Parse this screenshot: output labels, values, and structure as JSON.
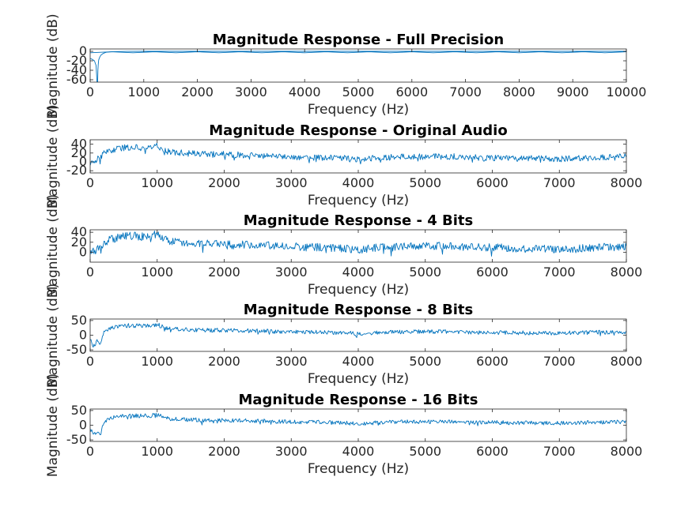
{
  "figure": {
    "background": "#ffffff",
    "line_color": "#0072bd",
    "axis_color": "#262626"
  },
  "chart_data": [
    {
      "type": "line",
      "title": "Magnitude Response - Full Precision",
      "xlabel": "Frequency (Hz)",
      "ylabel": "Magnitude (dB)",
      "xlim": [
        0,
        10000
      ],
      "ylim": [
        -65,
        5
      ],
      "xticks": [
        0,
        1000,
        2000,
        3000,
        4000,
        5000,
        6000,
        7000,
        8000,
        9000,
        10000
      ],
      "yticks": [
        -60,
        -40,
        -20,
        0
      ],
      "grid": false,
      "series": [
        {
          "x": [
            0,
            40,
            80,
            110,
            125,
            135,
            140,
            145,
            150,
            160,
            180,
            200,
            250,
            300,
            400,
            500,
            700,
            1000,
            2000,
            3000,
            4000,
            5000,
            6000,
            7000,
            8000,
            9000,
            10000
          ],
          "values": [
            -15,
            -17,
            -20,
            -30,
            -60,
            -80,
            -64,
            -40,
            -28,
            -18,
            -12,
            -8,
            -4,
            -2,
            -1,
            -0.5,
            -0.2,
            0,
            0,
            0,
            0,
            0,
            0,
            0,
            0,
            0,
            0
          ]
        },
        {
          "x": [
            0,
            200,
            400,
            600,
            800,
            1000,
            1200,
            1400,
            1600,
            1800,
            2000,
            2200,
            2400,
            2600,
            2800,
            3000,
            3200,
            3400,
            3600,
            3800,
            4000,
            4200,
            4400,
            4600,
            4800,
            5000,
            5200,
            5400,
            5600,
            5800,
            6000,
            6200,
            6400,
            6600,
            6800,
            7000,
            7200,
            7400,
            7600,
            7800,
            8000,
            8200,
            8400,
            8600,
            8800,
            9000,
            9200,
            9400,
            9600,
            9800,
            10000
          ],
          "values": [
            -3,
            -2,
            -1,
            -2,
            -3,
            -2,
            -1,
            -2,
            -3,
            -2,
            -1,
            -2,
            -3,
            -2,
            -1,
            -2,
            -3,
            -2,
            -1,
            -2,
            -3,
            -2,
            -1,
            -2,
            -3,
            -2,
            -1,
            -2,
            -3,
            -2,
            -1,
            -2,
            -3,
            -2,
            -1,
            -2,
            -3,
            -2,
            -1,
            -2,
            -3,
            -2,
            -1,
            -2,
            -3,
            -2,
            -1,
            -2,
            -3,
            -2,
            -1
          ]
        }
      ]
    },
    {
      "type": "line",
      "title": "Magnitude Response - Original Audio",
      "xlabel": "Frequency (Hz)",
      "ylabel": "Magnitude (dB)",
      "xlim": [
        0,
        8000
      ],
      "ylim": [
        -25,
        50
      ],
      "xticks": [
        0,
        1000,
        2000,
        3000,
        4000,
        5000,
        6000,
        7000,
        8000
      ],
      "yticks": [
        -20,
        0,
        20,
        40
      ],
      "grid": false,
      "series": [
        {
          "x": [
            0,
            100,
            200,
            300,
            400,
            500,
            600,
            700,
            800,
            900,
            1000,
            1100,
            1200,
            1400,
            1600,
            1800,
            2000,
            2200,
            2400,
            2600,
            2800,
            3000,
            3200,
            3400,
            3600,
            3800,
            4000,
            4200,
            4400,
            4600,
            4800,
            5000,
            5200,
            5400,
            5600,
            5800,
            6000,
            6200,
            6400,
            6600,
            6800,
            7000,
            7200,
            7400,
            7600,
            7800,
            8000
          ],
          "values": [
            -5,
            5,
            18,
            25,
            30,
            32,
            33,
            33,
            32,
            32,
            38,
            26,
            22,
            20,
            18,
            17,
            17,
            16,
            15,
            14,
            12,
            12,
            10,
            10,
            9,
            8,
            5,
            8,
            10,
            11,
            12,
            12,
            12,
            12,
            11,
            10,
            9,
            9,
            8,
            8,
            7,
            7,
            8,
            9,
            10,
            10,
            12
          ],
          "noise": 7
        }
      ]
    },
    {
      "type": "line",
      "title": "Magnitude Response - 4 Bits",
      "xlabel": "Frequency (Hz)",
      "ylabel": "Magnitude (dB)",
      "xlim": [
        0,
        8000
      ],
      "ylim": [
        -20,
        45
      ],
      "xticks": [
        0,
        1000,
        2000,
        3000,
        4000,
        5000,
        6000,
        7000,
        8000
      ],
      "yticks": [
        0,
        20,
        40
      ],
      "grid": false,
      "series": [
        {
          "x": [
            0,
            100,
            200,
            300,
            400,
            500,
            600,
            700,
            800,
            900,
            1000,
            1100,
            1200,
            1400,
            1600,
            1800,
            2000,
            2200,
            2400,
            2600,
            2800,
            3000,
            3200,
            3400,
            3600,
            3800,
            4000,
            4200,
            4400,
            4600,
            4800,
            5000,
            5200,
            5400,
            5600,
            5800,
            6000,
            6200,
            6400,
            6600,
            6800,
            7000,
            7200,
            7400,
            7600,
            7800,
            8000
          ],
          "values": [
            -2,
            6,
            18,
            26,
            30,
            32,
            33,
            32,
            32,
            32,
            38,
            26,
            22,
            20,
            18,
            17,
            17,
            16,
            15,
            14,
            12,
            12,
            10,
            10,
            9,
            8,
            3,
            8,
            10,
            11,
            12,
            12,
            12,
            12,
            11,
            10,
            9,
            9,
            8,
            8,
            7,
            7,
            6,
            8,
            10,
            10,
            12
          ],
          "noise": 8
        }
      ]
    },
    {
      "type": "line",
      "title": "Magnitude Response - 8 Bits",
      "xlabel": "Frequency (Hz)",
      "ylabel": "Magnitude (dB)",
      "xlim": [
        0,
        8000
      ],
      "ylim": [
        -55,
        55
      ],
      "xticks": [
        0,
        1000,
        2000,
        3000,
        4000,
        5000,
        6000,
        7000,
        8000
      ],
      "yticks": [
        -50,
        0,
        50
      ],
      "grid": false,
      "series": [
        {
          "x": [
            0,
            50,
            100,
            150,
            200,
            300,
            400,
            500,
            600,
            700,
            800,
            900,
            1000,
            1100,
            1200,
            1400,
            1600,
            1800,
            2000,
            2200,
            2400,
            2600,
            2800,
            3000,
            3200,
            3400,
            3600,
            3800,
            4000,
            4200,
            4400,
            4600,
            4800,
            5000,
            5200,
            5400,
            5600,
            5800,
            6000,
            6200,
            6400,
            6600,
            6800,
            7000,
            7200,
            7400,
            7600,
            7800,
            8000
          ],
          "values": [
            -15,
            -40,
            -20,
            -35,
            10,
            25,
            30,
            32,
            33,
            32,
            32,
            32,
            37,
            26,
            22,
            20,
            18,
            17,
            17,
            16,
            15,
            14,
            12,
            12,
            10,
            10,
            9,
            8,
            5,
            8,
            10,
            11,
            12,
            12,
            12,
            12,
            11,
            10,
            9,
            9,
            8,
            8,
            7,
            7,
            8,
            9,
            10,
            10,
            12
          ],
          "noise": 7
        }
      ]
    },
    {
      "type": "line",
      "title": "Magnitude Response - 16 Bits",
      "xlabel": "Frequency (Hz)",
      "ylabel": "Magnitude (dB)",
      "xlim": [
        0,
        8000
      ],
      "ylim": [
        -55,
        55
      ],
      "xticks": [
        0,
        1000,
        2000,
        3000,
        4000,
        5000,
        6000,
        7000,
        8000
      ],
      "yticks": [
        -50,
        0,
        50
      ],
      "grid": false,
      "series": [
        {
          "x": [
            0,
            50,
            100,
            150,
            200,
            300,
            400,
            500,
            600,
            700,
            800,
            900,
            1000,
            1100,
            1200,
            1400,
            1600,
            1800,
            2000,
            2200,
            2400,
            2600,
            2800,
            3000,
            3200,
            3400,
            3600,
            3800,
            4000,
            4200,
            4400,
            4600,
            4800,
            5000,
            5200,
            5400,
            5600,
            5800,
            6000,
            6200,
            6400,
            6600,
            6800,
            7000,
            7200,
            7400,
            7600,
            7800,
            8000
          ],
          "values": [
            -10,
            -35,
            -20,
            -30,
            10,
            25,
            30,
            32,
            33,
            32,
            32,
            32,
            37,
            26,
            22,
            20,
            18,
            17,
            17,
            16,
            15,
            14,
            12,
            12,
            10,
            10,
            9,
            8,
            5,
            8,
            10,
            11,
            12,
            12,
            12,
            12,
            11,
            10,
            9,
            9,
            8,
            8,
            7,
            7,
            8,
            9,
            10,
            10,
            12
          ],
          "noise": 7
        }
      ]
    }
  ]
}
